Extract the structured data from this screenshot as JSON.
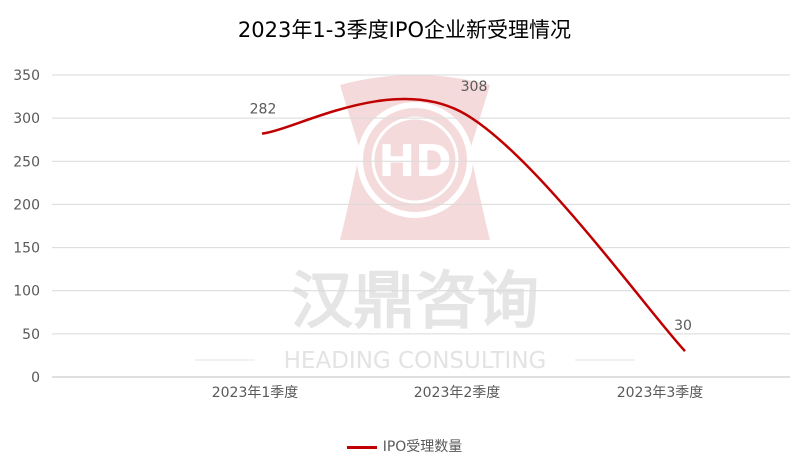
{
  "chart_data": {
    "type": "line",
    "title": "2023年1-3季度IPO企业新受理情况",
    "categories": [
      "2023年1季度",
      "2023年2季度",
      "2023年3季度"
    ],
    "series": [
      {
        "name": "IPO受理数量",
        "values": [
          282,
          308,
          30
        ],
        "color": "#c00000",
        "smooth": true
      }
    ],
    "ylim": [
      0,
      350
    ],
    "yticks": [
      0,
      50,
      100,
      150,
      200,
      250,
      300,
      350
    ],
    "grid": true,
    "legend": "bottom",
    "data_labels": true
  },
  "watermark": {
    "logo_text": "汉鼎咨询",
    "tagline": "HEADING CONSULTING"
  }
}
